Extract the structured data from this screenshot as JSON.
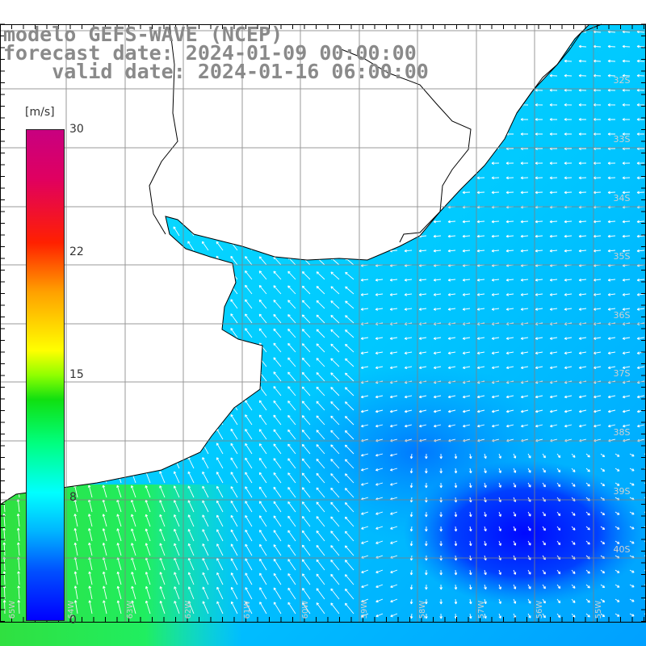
{
  "header": {
    "line1": "modelo GEFS-WAVE (NCEP)",
    "line2": "forecast date: 2024-01-09 00:00:00",
    "line3": "valid date: 2024-01-16 06:00:00"
  },
  "colorbar": {
    "unit": "[m/s]",
    "ticks": [
      "30",
      "22",
      "15",
      "8",
      "0"
    ]
  },
  "lat_labels": [
    "32S",
    "33S",
    "34S",
    "35S",
    "36S",
    "37S",
    "38S",
    "39S",
    "40S"
  ],
  "lon_labels": [
    "65W",
    "64W",
    "63W",
    "62W",
    "61W",
    "60W",
    "59W",
    "58W",
    "57W",
    "56W",
    "55W"
  ],
  "colors": {
    "land": "#ffffff",
    "coast": "#000000",
    "grid": "#808080",
    "arrow": "#ffffff",
    "label": "#8a8a8a"
  }
}
